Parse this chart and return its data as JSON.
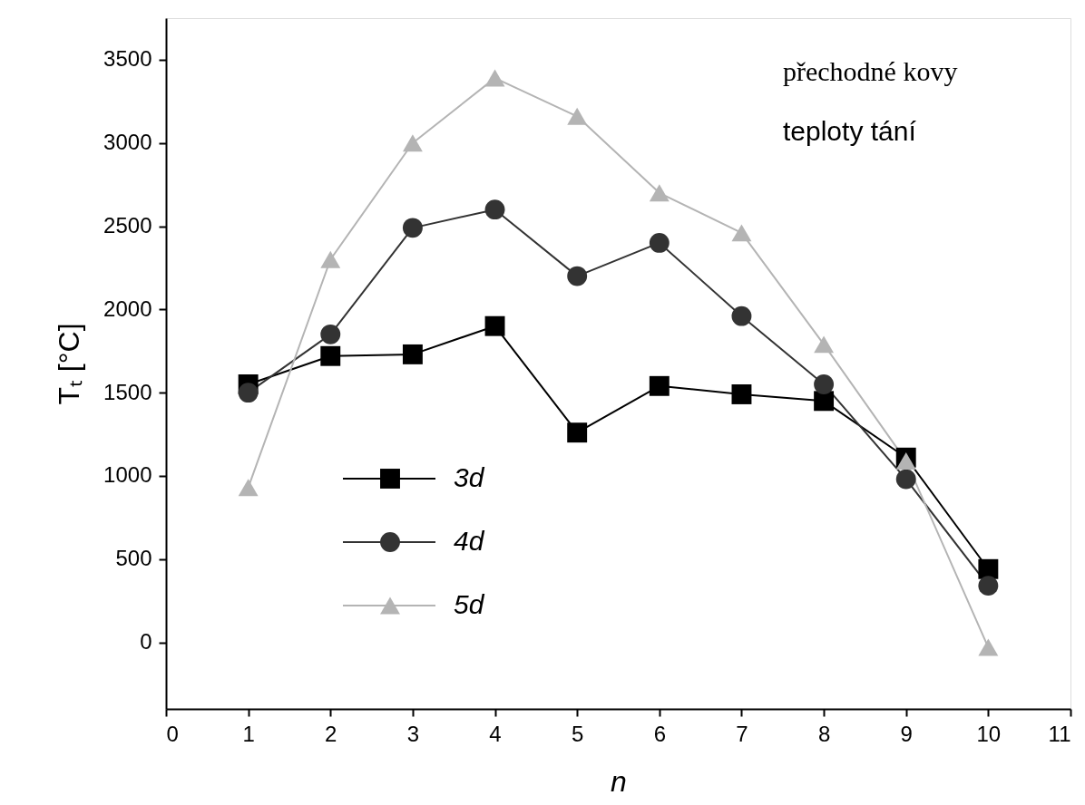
{
  "chart_data": {
    "type": "line",
    "xlabel": "n",
    "ylabel": "Tₜ [°C]",
    "x": [
      1,
      2,
      3,
      4,
      5,
      6,
      7,
      8,
      9,
      10
    ],
    "series": [
      {
        "name": "3d",
        "color": "#000000",
        "marker": "square",
        "values": [
          1550,
          1720,
          1730,
          1900,
          1260,
          1540,
          1490,
          1450,
          1110,
          440
        ]
      },
      {
        "name": "4d",
        "color": "#333333",
        "marker": "circle",
        "values": [
          1500,
          1850,
          2490,
          2600,
          2200,
          2400,
          1960,
          1550,
          980,
          340
        ]
      },
      {
        "name": "5d",
        "color": "#b4b4b4",
        "marker": "triangle",
        "values": [
          930,
          2300,
          3000,
          3390,
          3160,
          2700,
          2460,
          1790,
          1090,
          -30
        ]
      }
    ],
    "xlim": [
      0,
      11
    ],
    "xticks": [
      0,
      1,
      2,
      3,
      4,
      5,
      6,
      7,
      8,
      9,
      10,
      11
    ],
    "ylim": [
      -400,
      3750
    ],
    "yticks": [
      0,
      500,
      1000,
      1500,
      2000,
      2500,
      3000,
      3500
    ],
    "annotations": [
      "přechodné kovy",
      "teploty tání"
    ],
    "legend": "bottom left",
    "grid": false,
    "line_style": "solid"
  }
}
